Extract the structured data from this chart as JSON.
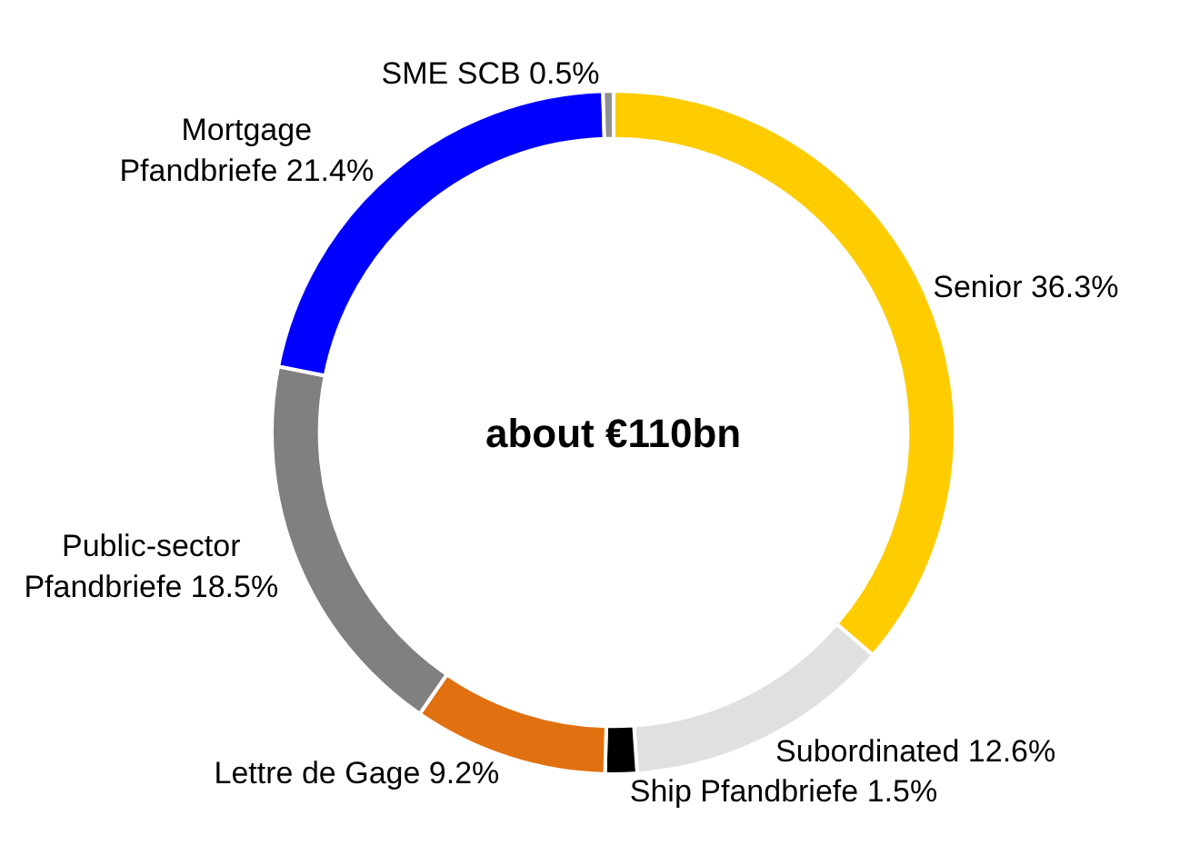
{
  "chart_data": {
    "type": "donut",
    "categories": [
      "Senior",
      "Subordinated",
      "Ship Pfandbriefe",
      "Lettre de Gage",
      "Public-sector Pfandbriefe",
      "Mortgage Pfandbriefe",
      "SME SCB"
    ],
    "values": [
      36.3,
      12.6,
      1.5,
      9.2,
      18.5,
      21.4,
      0.5
    ],
    "colors": [
      "#ffcc00",
      "#e0e0e0",
      "#000000",
      "#e07010",
      "#808080",
      "#0000ff",
      "#909090"
    ],
    "value_labels": [
      "36.3%",
      "12.6%",
      "1.5%",
      "9.2%",
      "18.5%",
      "21.4%",
      "0.5%"
    ],
    "annotations": [
      "about €110bn"
    ],
    "legend": false
  }
}
